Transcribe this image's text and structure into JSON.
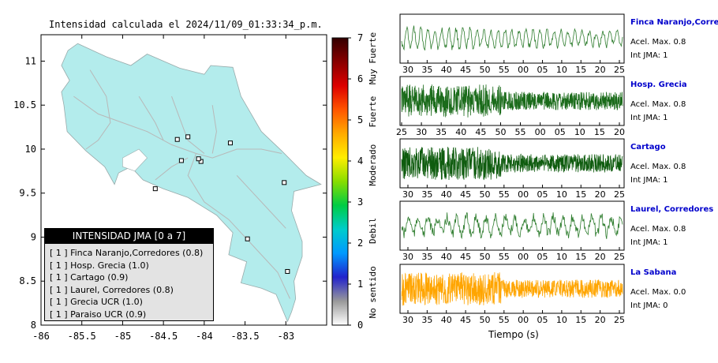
{
  "map": {
    "title": "Intensidad calculada el 2024/11/09_01:33:34_p.m.",
    "x_ticks": [
      "-86",
      "-85.5",
      "-85",
      "-84.5",
      "-84",
      "-83.5",
      "-83"
    ],
    "x_values": [
      -86,
      -85.5,
      -85,
      -84.5,
      -84,
      -83.5,
      -83
    ],
    "y_ticks": [
      "11",
      "10.5",
      "10",
      "9.5",
      "9",
      "8.5",
      "8"
    ],
    "y_values": [
      11,
      10.5,
      10,
      9.5,
      9,
      8.5,
      8
    ],
    "xlim": [
      -86,
      -82.5
    ],
    "ylim": [
      8,
      11.3
    ],
    "land_color": "#b3ecec",
    "station_markers": [
      {
        "lon": -84.33,
        "lat": 10.11
      },
      {
        "lon": -84.2,
        "lat": 10.14
      },
      {
        "lon": -84.04,
        "lat": 9.86
      },
      {
        "lon": -84.07,
        "lat": 9.89
      },
      {
        "lon": -84.28,
        "lat": 9.87
      },
      {
        "lon": -83.68,
        "lat": 10.07
      },
      {
        "lon": -83.02,
        "lat": 9.62
      },
      {
        "lon": -84.6,
        "lat": 9.55
      },
      {
        "lon": -83.47,
        "lat": 8.98
      },
      {
        "lon": -82.98,
        "lat": 8.61
      }
    ]
  },
  "colorbar": {
    "ticks": [
      "7",
      "6",
      "5",
      "4",
      "3",
      "2",
      "1",
      "0"
    ],
    "categories": [
      "Muy Fuerte",
      "Fuerte",
      "Moderado",
      "Debil",
      "No sentido"
    ],
    "range": [
      0,
      7
    ]
  },
  "legend": {
    "title": "INTENSIDAD JMA [0 a 7]",
    "items": [
      "[ 1 ]  Finca Naranjo,Corredores (0.8)",
      "[ 1 ]  Hosp. Grecia (1.0)",
      "[ 1 ]  Cartago (0.9)",
      "[ 1 ]  Laurel, Corredores (0.8)",
      "[ 1 ]  Grecia UCR (1.0)",
      "[ 1 ]  Paraiso UCR (0.9)"
    ]
  },
  "waveforms": [
    {
      "name": "Finca Naranjo,Corredor",
      "acel": "Acel. Max. 0.8",
      "jma": "Int JMA: 1",
      "color": "#2e7d2e",
      "ticks": [
        "30",
        "35",
        "40",
        "45",
        "50",
        "55",
        "00",
        "05",
        "10",
        "15",
        "20",
        "25"
      ],
      "style": "smooth"
    },
    {
      "name": "Hosp. Grecia",
      "acel": "Acel. Max. 0.8",
      "jma": "Int JMA: 1",
      "color": "#1a6b1a",
      "ticks": [
        "25",
        "30",
        "35",
        "40",
        "45",
        "50",
        "55",
        "00",
        "05",
        "10",
        "15",
        "20"
      ],
      "style": "dense"
    },
    {
      "name": "Cartago",
      "acel": "Acel. Max. 0.8",
      "jma": "Int JMA: 1",
      "color": "#0f5c0f",
      "ticks": [
        "30",
        "35",
        "40",
        "45",
        "50",
        "55",
        "00",
        "05",
        "10",
        "15",
        "20",
        "25"
      ],
      "style": "dense"
    },
    {
      "name": "Laurel, Corredores",
      "acel": "Acel. Max. 0.8",
      "jma": "Int JMA: 1",
      "color": "#2e7d2e",
      "ticks": [
        "30",
        "35",
        "40",
        "45",
        "50",
        "55",
        "00",
        "05",
        "10",
        "15",
        "20",
        "25"
      ],
      "style": "mixed"
    },
    {
      "name": "La Sabana",
      "acel": "Acel. Max. 0.0",
      "jma": "Int JMA: 0",
      "color": "#ffa500",
      "ticks": [
        "30",
        "35",
        "40",
        "45",
        "50",
        "55",
        "00",
        "05",
        "10",
        "15",
        "20",
        "25"
      ],
      "style": "dense"
    }
  ],
  "xaxis_label": "Tiempo (s)",
  "chart_data": [
    {
      "type": "scatter",
      "title": "Intensidad calculada el 2024/11/09_01:33:34_p.m.",
      "xlim": [
        -86,
        -82.5
      ],
      "ylim": [
        8,
        11.3
      ]
    },
    {
      "type": "line",
      "series": [
        {
          "name": "Finca Naranjo,Corredor"
        },
        {
          "name": "Hosp. Grecia"
        },
        {
          "name": "Cartago"
        },
        {
          "name": "Laurel, Corredores"
        },
        {
          "name": "La Sabana"
        }
      ],
      "xlabel": "Tiempo (s)"
    }
  ]
}
